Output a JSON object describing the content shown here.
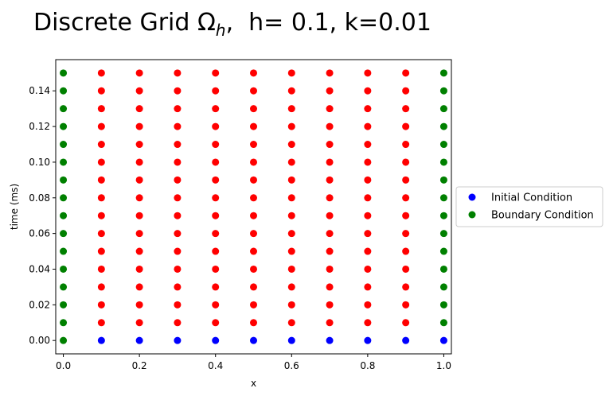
{
  "chart_data": {
    "type": "scatter",
    "title": {
      "prefix": "Discrete Grid Ω",
      "subscript": "h",
      "suffix": ",  h= 0.1, k=0.01"
    },
    "xlabel": "x",
    "ylabel": "time (ms)",
    "xlim": [
      -0.02,
      1.02
    ],
    "ylim": [
      -0.0075,
      0.1575
    ],
    "xticks": [
      "0.0",
      "0.2",
      "0.4",
      "0.6",
      "0.8",
      "1.0"
    ],
    "yticks": [
      "0.00",
      "0.02",
      "0.04",
      "0.06",
      "0.08",
      "0.10",
      "0.12",
      "0.14"
    ],
    "grid": false,
    "legend_position": "center-right outside",
    "x_values": [
      0.0,
      0.1,
      0.2,
      0.3,
      0.4,
      0.5,
      0.6,
      0.7,
      0.8,
      0.9,
      1.0
    ],
    "t_values": [
      0.0,
      0.01,
      0.02,
      0.03,
      0.04,
      0.05,
      0.06,
      0.07,
      0.08,
      0.09,
      0.1,
      0.11,
      0.12,
      0.13,
      0.14,
      0.15
    ],
    "series": [
      {
        "name": "Initial Condition",
        "color": "#0000ff",
        "rule": "t = 0, 0 < x <= 1"
      },
      {
        "name": "Boundary Condition",
        "color": "#008000",
        "rule": "x = 0 or x = 1, t > 0"
      },
      {
        "color": "#ff0000",
        "rule": "interior"
      }
    ],
    "legend_entries": [
      "Initial Condition",
      "Boundary Condition"
    ]
  }
}
